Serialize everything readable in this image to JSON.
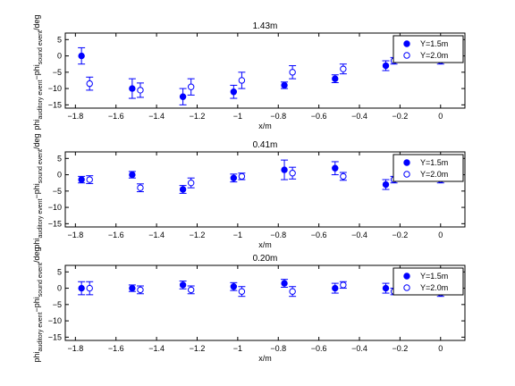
{
  "figure": {
    "ylabel_main": "phi",
    "ylabel_sub1": "auditory event",
    "ylabel_mid": "−phi",
    "ylabel_sub2": "sound event",
    "ylabel_unit": "/deg"
  },
  "chart_data": [
    {
      "type": "scatter",
      "title": "1.43m",
      "xlabel": "x/m",
      "xlim": [
        -1.85,
        0.12
      ],
      "ylim": [
        -16,
        7
      ],
      "xticks": [
        -1.8,
        -1.6,
        -1.4,
        -1.2,
        -1,
        -0.8,
        -0.6,
        -0.4,
        -0.2,
        0
      ],
      "xtick_labels": [
        "−1.8",
        "−1.6",
        "−1.4",
        "−1.2",
        "−1",
        "−0.8",
        "−0.6",
        "−0.4",
        "−0.2",
        "0"
      ],
      "yticks": [
        5,
        0,
        -5,
        -10,
        -15
      ],
      "ytick_labels": [
        "5",
        "0",
        "−5",
        "−10",
        "−15"
      ],
      "legend_position": "top-right",
      "series": [
        {
          "name": "Y=1.5m",
          "marker": "filled-circle",
          "color": "#0000ff",
          "x": [
            -1.77,
            -1.52,
            -1.27,
            -1.02,
            -0.77,
            -0.52,
            -0.27
          ],
          "y": [
            0,
            -10,
            -12.5,
            -11,
            -9,
            -7,
            -3
          ],
          "err": [
            2.5,
            3,
            2.5,
            2,
            1,
            1.2,
            1.5
          ]
        },
        {
          "name": "Y=2.0m",
          "marker": "open-circle",
          "color": "#0000ff",
          "x": [
            -1.73,
            -1.48,
            -1.23,
            -0.98,
            -0.73,
            -0.48,
            -0.23,
            0
          ],
          "y": [
            -8.5,
            -10.5,
            -9.5,
            -7.5,
            -5,
            -4,
            -1.5,
            -1.5
          ],
          "err": [
            2,
            2.2,
            2.5,
            2.5,
            2,
            1.5,
            1,
            1
          ]
        }
      ]
    },
    {
      "type": "scatter",
      "title": "0.41m",
      "xlabel": "x/m",
      "xlim": [
        -1.85,
        0.12
      ],
      "ylim": [
        -16,
        7
      ],
      "xticks": [
        -1.8,
        -1.6,
        -1.4,
        -1.2,
        -1,
        -0.8,
        -0.6,
        -0.4,
        -0.2,
        0
      ],
      "xtick_labels": [
        "−1.8",
        "−1.6",
        "−1.4",
        "−1.2",
        "−1",
        "−0.8",
        "−0.6",
        "−0.4",
        "−0.2",
        "0"
      ],
      "yticks": [
        5,
        0,
        -5,
        -10,
        -15
      ],
      "ytick_labels": [
        "5",
        "0",
        "−5",
        "−10",
        "−15"
      ],
      "legend_position": "top-right",
      "series": [
        {
          "name": "Y=1.5m",
          "marker": "filled-circle",
          "color": "#0000ff",
          "x": [
            -1.77,
            -1.52,
            -1.27,
            -1.02,
            -0.77,
            -0.52,
            -0.27
          ],
          "y": [
            -1.5,
            0,
            -4.5,
            -1,
            1.5,
            2,
            -3
          ],
          "err": [
            1,
            1,
            1.2,
            1.2,
            3,
            2,
            1.5
          ]
        },
        {
          "name": "Y=2.0m",
          "marker": "open-circle",
          "color": "#0000ff",
          "x": [
            -1.73,
            -1.48,
            -1.23,
            -0.98,
            -0.73,
            -0.48,
            -0.23,
            0
          ],
          "y": [
            -1.5,
            -4,
            -2.5,
            -0.5,
            0.5,
            -0.5,
            -1.5,
            -1.5
          ],
          "err": [
            1.2,
            1.2,
            1.5,
            1,
            1.8,
            1.2,
            1,
            1
          ]
        }
      ]
    },
    {
      "type": "scatter",
      "title": "0.20m",
      "xlabel": "x/m",
      "xlim": [
        -1.85,
        0.12
      ],
      "ylim": [
        -16,
        7
      ],
      "xticks": [
        -1.8,
        -1.6,
        -1.4,
        -1.2,
        -1,
        -0.8,
        -0.6,
        -0.4,
        -0.2,
        0
      ],
      "xtick_labels": [
        "−1.8",
        "−1.6",
        "−1.4",
        "−1.2",
        "−1",
        "−0.8",
        "−0.6",
        "−0.4",
        "−0.2",
        "0"
      ],
      "yticks": [
        5,
        0,
        -5,
        -10,
        -15
      ],
      "ytick_labels": [
        "5",
        "0",
        "−5",
        "−10",
        "−15"
      ],
      "legend_position": "top-right",
      "series": [
        {
          "name": "Y=1.5m",
          "marker": "filled-circle",
          "color": "#0000ff",
          "x": [
            -1.77,
            -1.52,
            -1.27,
            -1.02,
            -0.77,
            -0.52,
            -0.27
          ],
          "y": [
            0,
            0,
            1,
            0.5,
            1.5,
            0,
            0
          ],
          "err": [
            2,
            1,
            1.2,
            1.2,
            1.2,
            1.5,
            1.5
          ]
        },
        {
          "name": "Y=2.0m",
          "marker": "open-circle",
          "color": "#0000ff",
          "x": [
            -1.73,
            -1.48,
            -1.23,
            -0.98,
            -0.73,
            -0.48,
            -0.23,
            0
          ],
          "y": [
            0,
            -0.5,
            -0.5,
            -1,
            -1,
            1,
            -1,
            -1.5
          ],
          "err": [
            2,
            1.2,
            1.2,
            1.5,
            1.5,
            1,
            1,
            1
          ]
        }
      ]
    }
  ]
}
